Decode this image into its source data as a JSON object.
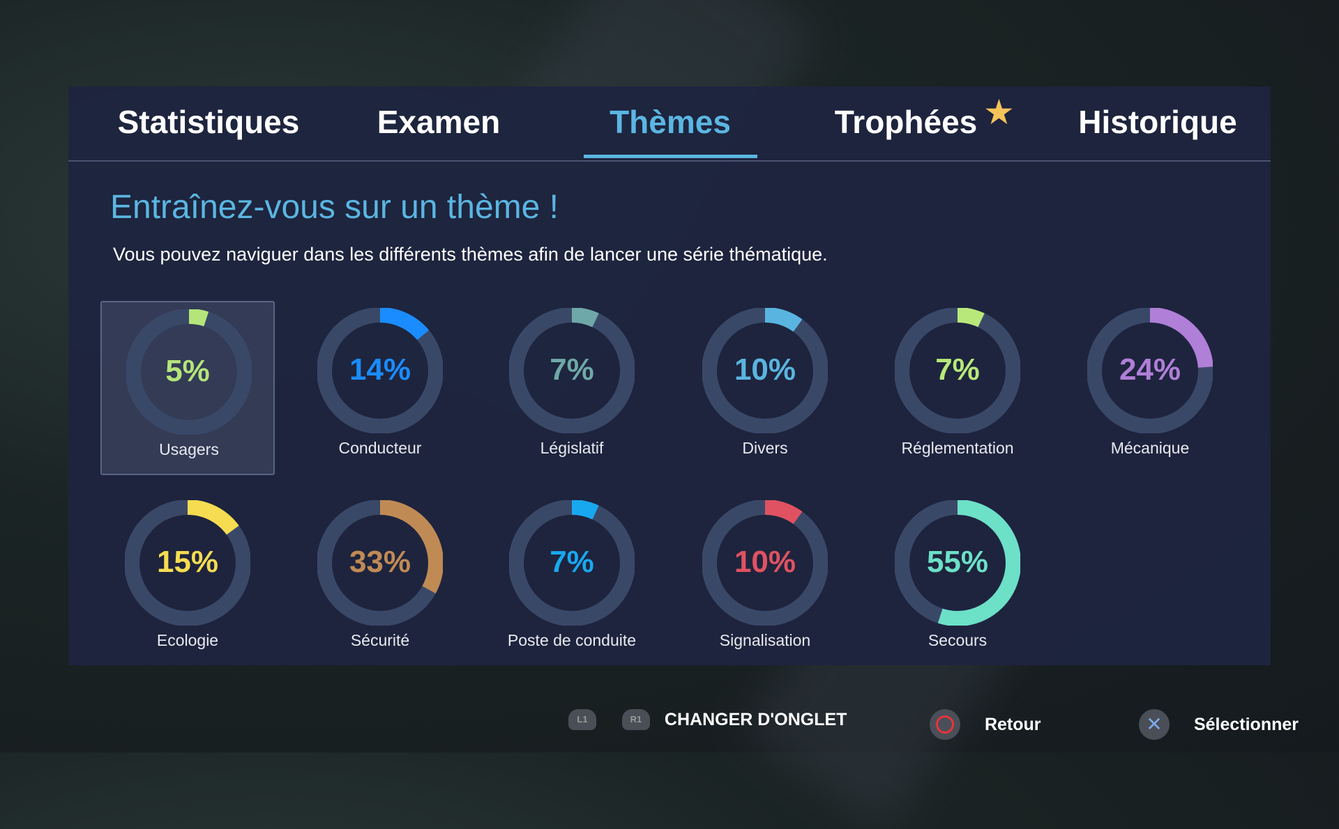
{
  "tabs": [
    {
      "label": "Statistiques",
      "active": false
    },
    {
      "label": "Examen",
      "active": false
    },
    {
      "label": "Thèmes",
      "active": true
    },
    {
      "label": "Trophées",
      "active": false,
      "badge": "star-icon"
    },
    {
      "label": "Historique",
      "active": false
    }
  ],
  "heading": "Entraînez-vous sur un thème !",
  "subtitle": "Vous pouvez naviguer dans les différents thèmes afin de lancer une série thématique.",
  "themes": [
    {
      "name": "Usagers",
      "percent": 5,
      "label": "5%",
      "color": "#b5e57a",
      "selected": true
    },
    {
      "name": "Conducteur",
      "percent": 14,
      "label": "14%",
      "color": "#1a8cff"
    },
    {
      "name": "Législatif",
      "percent": 7,
      "label": "7%",
      "color": "#6fa8a8"
    },
    {
      "name": "Divers",
      "percent": 10,
      "label": "10%",
      "color": "#5ab4e0"
    },
    {
      "name": "Réglementation",
      "percent": 7,
      "label": "7%",
      "color": "#b8e87a"
    },
    {
      "name": "Mécanique",
      "percent": 24,
      "label": "24%",
      "color": "#b07fd8"
    },
    {
      "name": "Ecologie",
      "percent": 15,
      "label": "15%",
      "color": "#f5dc50"
    },
    {
      "name": "Sécurité",
      "percent": 33,
      "label": "33%",
      "color": "#c08a55"
    },
    {
      "name": "Poste de conduite",
      "percent": 7,
      "label": "7%",
      "color": "#18a8f0"
    },
    {
      "name": "Signalisation",
      "percent": 10,
      "label": "10%",
      "color": "#e05262"
    },
    {
      "name": "Secours",
      "percent": 55,
      "label": "55%",
      "color": "#6de0c8"
    }
  ],
  "footer": {
    "l1": "L1",
    "r1": "R1",
    "change_tab": "CHANGER D'ONGLET",
    "back": "Retour",
    "select": "Sélectionner"
  },
  "colors": {
    "accent": "#5bb6e2",
    "track": "#3a4868",
    "star": "#f6c35a"
  }
}
